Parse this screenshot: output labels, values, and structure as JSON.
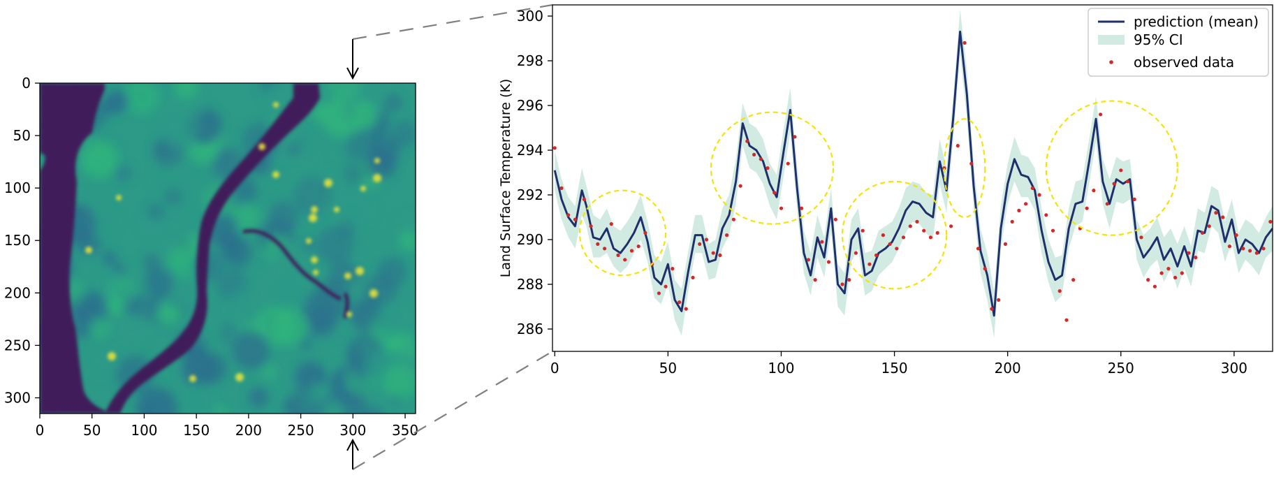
{
  "chart_data": [
    {
      "type": "heatmap",
      "title": "",
      "xlabel": "",
      "ylabel": "",
      "xlim": [
        0,
        360
      ],
      "ylim": [
        315,
        0
      ],
      "xticks": [
        0,
        50,
        100,
        150,
        200,
        250,
        300,
        350
      ],
      "yticks": [
        0,
        50,
        100,
        150,
        200,
        250,
        300
      ],
      "colormap": "viridis",
      "slice_column": 300,
      "colors": {
        "water": "#3f1a5a",
        "land_low": "#2b6f8e",
        "land_mid": "#2c9a87",
        "land_high": "#2fb47c",
        "hot_spot": "#e6e23a"
      }
    },
    {
      "type": "line",
      "title": "",
      "xlabel": "",
      "ylabel": "Land Surface Temperature (K)",
      "xlim": [
        -1,
        317
      ],
      "ylim": [
        285,
        300.5
      ],
      "xticks": [
        0,
        50,
        100,
        150,
        200,
        250,
        300
      ],
      "yticks": [
        286,
        288,
        290,
        292,
        294,
        296,
        298,
        300
      ],
      "grid": false,
      "legend_position": "top-right",
      "legend": [
        {
          "label": "prediction (mean)",
          "kind": "line",
          "color": "#1f2f6b"
        },
        {
          "label": "95% CI",
          "kind": "band",
          "color": "#d2ebe2"
        },
        {
          "label": "observed data",
          "kind": "point",
          "color": "#d62728"
        }
      ],
      "series": [
        {
          "name": "prediction (mean)",
          "x": [
            0,
            3,
            6,
            9,
            12,
            14,
            17,
            20,
            23,
            26,
            29,
            32,
            35,
            38,
            41,
            44,
            47,
            50,
            53,
            56,
            59,
            62,
            65,
            68,
            71,
            74,
            77,
            80,
            83,
            86,
            89,
            92,
            95,
            98,
            101,
            104,
            107,
            110,
            113,
            116,
            119,
            122,
            125,
            128,
            131,
            134,
            137,
            140,
            143,
            146,
            149,
            152,
            155,
            158,
            161,
            164,
            167,
            170,
            173,
            176,
            179,
            182,
            185,
            188,
            191,
            194,
            197,
            200,
            203,
            206,
            209,
            212,
            215,
            218,
            221,
            224,
            227,
            230,
            233,
            236,
            239,
            242,
            245,
            248,
            251,
            254,
            257,
            260,
            263,
            266,
            269,
            272,
            275,
            278,
            281,
            284,
            287,
            290,
            293,
            296,
            299,
            302,
            305,
            308,
            311,
            314,
            317
          ],
          "y": [
            293.1,
            291.8,
            291.0,
            290.6,
            292.2,
            291.5,
            290.1,
            290.0,
            290.5,
            289.6,
            289.4,
            289.8,
            290.3,
            291.0,
            289.9,
            288.3,
            288.0,
            288.9,
            287.3,
            286.8,
            288.6,
            290.2,
            290.2,
            289.0,
            289.1,
            290.5,
            291.1,
            292.6,
            295.2,
            294.2,
            294.0,
            293.5,
            292.5,
            291.9,
            293.9,
            295.8,
            292.3,
            289.4,
            288.4,
            290.1,
            289.2,
            291.4,
            288.0,
            287.6,
            290.0,
            290.5,
            288.4,
            288.6,
            289.4,
            289.6,
            289.9,
            290.5,
            291.3,
            291.7,
            291.6,
            291.2,
            291.0,
            293.5,
            292.2,
            295.5,
            299.3,
            296.5,
            292.4,
            289.5,
            288.4,
            286.6,
            290.5,
            292.5,
            293.6,
            292.9,
            292.8,
            292.2,
            290.4,
            289.0,
            288.2,
            288.4,
            290.5,
            291.6,
            291.7,
            293.5,
            295.4,
            292.6,
            291.6,
            292.7,
            292.5,
            292.7,
            290.0,
            289.2,
            289.6,
            290.1,
            289.1,
            289.6,
            288.8,
            289.7,
            288.8,
            290.4,
            290.3,
            291.5,
            291.3,
            289.9,
            290.9,
            289.4,
            290.0,
            289.8,
            289.4,
            290.1,
            290.5
          ]
        },
        {
          "name": "95% CI",
          "x": [
            0,
            3,
            6,
            9,
            12,
            14,
            17,
            20,
            23,
            26,
            29,
            32,
            35,
            38,
            41,
            44,
            47,
            50,
            53,
            56,
            59,
            62,
            65,
            68,
            71,
            74,
            77,
            80,
            83,
            86,
            89,
            92,
            95,
            98,
            101,
            104,
            107,
            110,
            113,
            116,
            119,
            122,
            125,
            128,
            131,
            134,
            137,
            140,
            143,
            146,
            149,
            152,
            155,
            158,
            161,
            164,
            167,
            170,
            173,
            176,
            179,
            182,
            185,
            188,
            191,
            194,
            197,
            200,
            203,
            206,
            209,
            212,
            215,
            218,
            221,
            224,
            227,
            230,
            233,
            236,
            239,
            242,
            245,
            248,
            251,
            254,
            257,
            260,
            263,
            266,
            269,
            272,
            275,
            278,
            281,
            284,
            287,
            290,
            293,
            296,
            299,
            302,
            305,
            308,
            311,
            314,
            317
          ],
          "lower": [
            292.2,
            290.9,
            290.1,
            289.6,
            291.1,
            290.6,
            289.2,
            289.2,
            289.4,
            288.8,
            288.5,
            288.8,
            289.4,
            290.0,
            289.0,
            287.4,
            287.1,
            288.0,
            286.4,
            285.7,
            287.7,
            289.4,
            289.4,
            288.2,
            288.3,
            289.6,
            290.2,
            291.6,
            294.2,
            293.2,
            293.0,
            292.5,
            291.5,
            290.9,
            292.8,
            294.8,
            291.3,
            288.5,
            287.5,
            289.2,
            288.3,
            290.4,
            287.0,
            286.6,
            289.0,
            289.6,
            287.5,
            287.7,
            288.4,
            288.7,
            289.0,
            289.6,
            290.3,
            290.8,
            290.7,
            290.3,
            290.0,
            292.5,
            291.2,
            294.5,
            298.3,
            295.4,
            291.4,
            288.5,
            287.3,
            285.6,
            289.6,
            291.6,
            292.6,
            291.9,
            291.9,
            291.3,
            289.4,
            288.1,
            287.2,
            287.5,
            289.6,
            290.6,
            290.8,
            292.5,
            294.4,
            291.6,
            290.5,
            291.7,
            291.6,
            291.8,
            289.1,
            288.3,
            288.8,
            289.1,
            288.1,
            288.7,
            287.8,
            288.7,
            287.9,
            289.5,
            289.4,
            290.6,
            290.3,
            289.0,
            289.9,
            288.5,
            289.1,
            288.8,
            288.4,
            289.2,
            289.5
          ],
          "upper": [
            294.0,
            292.7,
            291.9,
            291.5,
            293.2,
            292.4,
            291.1,
            290.9,
            291.4,
            290.6,
            290.4,
            290.8,
            291.3,
            292.0,
            290.8,
            289.3,
            289.0,
            289.9,
            288.2,
            287.8,
            289.5,
            291.1,
            291.1,
            289.8,
            290.0,
            291.4,
            292.0,
            293.6,
            296.1,
            295.2,
            295.0,
            294.5,
            293.4,
            292.9,
            294.9,
            296.8,
            293.3,
            290.4,
            289.4,
            291.1,
            290.1,
            292.3,
            288.9,
            288.5,
            290.9,
            291.4,
            289.4,
            289.5,
            290.4,
            290.6,
            290.8,
            291.4,
            292.3,
            292.6,
            292.5,
            292.1,
            292.0,
            294.5,
            293.2,
            296.5,
            300.3,
            297.6,
            293.4,
            290.5,
            289.4,
            287.7,
            291.5,
            293.4,
            294.6,
            293.8,
            293.7,
            293.2,
            291.4,
            290.0,
            289.2,
            289.3,
            291.4,
            292.6,
            292.7,
            294.5,
            296.4,
            293.6,
            292.7,
            293.7,
            293.5,
            293.6,
            290.9,
            290.2,
            290.5,
            291.0,
            290.1,
            290.5,
            289.8,
            290.6,
            289.7,
            291.4,
            291.2,
            292.4,
            292.2,
            290.8,
            291.8,
            290.3,
            290.9,
            290.7,
            290.3,
            291.0,
            291.5
          ]
        },
        {
          "name": "observed data",
          "x": [
            0,
            3,
            6,
            9,
            13,
            16,
            19,
            22,
            25,
            28,
            31,
            34,
            37,
            40,
            43,
            46,
            49,
            52,
            55,
            58,
            61,
            64,
            67,
            70,
            73,
            76,
            79,
            82,
            85,
            88,
            91,
            94,
            97,
            100,
            103,
            106,
            109,
            112,
            115,
            118,
            121,
            124,
            127,
            130,
            133,
            136,
            139,
            142,
            145,
            148,
            151,
            154,
            157,
            160,
            163,
            166,
            169,
            172,
            175,
            178,
            181,
            184,
            187,
            190,
            193,
            196,
            199,
            202,
            205,
            208,
            211,
            214,
            217,
            220,
            223,
            226,
            229,
            232,
            235,
            238,
            241,
            244,
            247,
            250,
            253,
            256,
            259,
            262,
            265,
            268,
            271,
            274,
            277,
            280,
            283,
            286,
            289,
            292,
            295,
            298,
            301,
            304,
            307,
            310,
            313,
            316
          ],
          "y": [
            294.1,
            292.3,
            291.1,
            290.9,
            291.8,
            290.6,
            289.8,
            289.6,
            290.7,
            289.3,
            289.1,
            289.5,
            289.7,
            290.3,
            288.9,
            287.6,
            287.9,
            288.7,
            287.2,
            286.9,
            288.3,
            289.8,
            290.0,
            289.4,
            289.3,
            290.2,
            290.9,
            292.4,
            294.4,
            293.8,
            293.6,
            293.2,
            292.1,
            291.4,
            293.4,
            294.6,
            291.4,
            289.1,
            288.2,
            289.9,
            289.0,
            290.9,
            288.0,
            288.2,
            289.4,
            290.4,
            288.9,
            289.3,
            290.2,
            289.8,
            289.6,
            290.1,
            290.6,
            290.8,
            290.4,
            290.1,
            290.3,
            293.2,
            290.6,
            294.2,
            298.8,
            293.4,
            289.6,
            288.7,
            286.9,
            287.3,
            289.8,
            290.8,
            291.3,
            291.6,
            292.3,
            292.0,
            291.1,
            290.4,
            287.7,
            286.4,
            288.2,
            290.5,
            291.4,
            292.2,
            295.6,
            291.6,
            292.5,
            293.1,
            292.6,
            291.8,
            290.1,
            288.2,
            287.9,
            288.5,
            288.7,
            288.3,
            288.5,
            289.4,
            289.2,
            290.3,
            290.6,
            291.2,
            291.0,
            289.7,
            290.2,
            289.6,
            289.5,
            289.4,
            289.6,
            290.8
          ]
        }
      ],
      "annotations": [
        {
          "kind": "circle",
          "cx": 30,
          "cy": 290.3,
          "rx": 19,
          "ry": 1.9,
          "color": "#f2e40a"
        },
        {
          "kind": "circle",
          "cx": 96,
          "cy": 293.2,
          "rx": 27,
          "ry": 2.5,
          "color": "#f2e40a"
        },
        {
          "kind": "circle",
          "cx": 150,
          "cy": 290.2,
          "rx": 23,
          "ry": 2.4,
          "color": "#f2e40a"
        },
        {
          "kind": "circle",
          "cx": 181,
          "cy": 293.2,
          "rx": 9,
          "ry": 2.2,
          "color": "#f2e40a"
        },
        {
          "kind": "circle",
          "cx": 246,
          "cy": 293.2,
          "rx": 29,
          "ry": 3.0,
          "color": "#f2e40a"
        }
      ]
    }
  ]
}
